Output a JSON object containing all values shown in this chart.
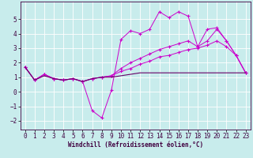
{
  "xlabel": "Windchill (Refroidissement éolien,°C)",
  "background_color": "#c8ecec",
  "grid_color": "#b0d8d8",
  "line_color_main": "#cc00cc",
  "line_color_dark": "#660066",
  "xlim": [
    -0.5,
    23.5
  ],
  "ylim": [
    -2.6,
    6.2
  ],
  "yticks": [
    -2,
    -1,
    0,
    1,
    2,
    3,
    4,
    5
  ],
  "xticks": [
    0,
    1,
    2,
    3,
    4,
    5,
    6,
    7,
    8,
    9,
    10,
    11,
    12,
    13,
    14,
    15,
    16,
    17,
    18,
    19,
    20,
    21,
    22,
    23
  ],
  "x": [
    0,
    1,
    2,
    3,
    4,
    5,
    6,
    7,
    8,
    9,
    10,
    11,
    12,
    13,
    14,
    15,
    16,
    17,
    18,
    19,
    20,
    21,
    22,
    23
  ],
  "line1": [
    1.7,
    0.8,
    1.2,
    0.9,
    0.8,
    0.9,
    0.7,
    -1.3,
    -1.8,
    0.1,
    3.6,
    4.2,
    4.0,
    4.3,
    5.5,
    5.1,
    5.5,
    5.2,
    3.1,
    4.3,
    4.4,
    3.5,
    2.5,
    1.3
  ],
  "line2": [
    1.7,
    0.8,
    1.2,
    0.9,
    0.8,
    0.9,
    0.7,
    0.9,
    1.0,
    1.1,
    1.6,
    2.0,
    2.3,
    2.6,
    2.9,
    3.1,
    3.3,
    3.5,
    3.1,
    3.5,
    4.3,
    3.5,
    2.5,
    1.3
  ],
  "line3": [
    1.7,
    0.8,
    1.2,
    0.9,
    0.8,
    0.9,
    0.7,
    0.9,
    1.0,
    1.1,
    1.4,
    1.6,
    1.9,
    2.1,
    2.4,
    2.5,
    2.7,
    2.9,
    3.0,
    3.2,
    3.5,
    3.1,
    2.5,
    1.3
  ],
  "line4": [
    1.7,
    0.8,
    1.1,
    0.9,
    0.8,
    0.9,
    0.7,
    0.9,
    1.0,
    1.0,
    1.1,
    1.2,
    1.3,
    1.3,
    1.3,
    1.3,
    1.3,
    1.3,
    1.3,
    1.3,
    1.3,
    1.3,
    1.3,
    1.3
  ],
  "tick_fontsize": 5.5,
  "xlabel_fontsize": 5.5
}
